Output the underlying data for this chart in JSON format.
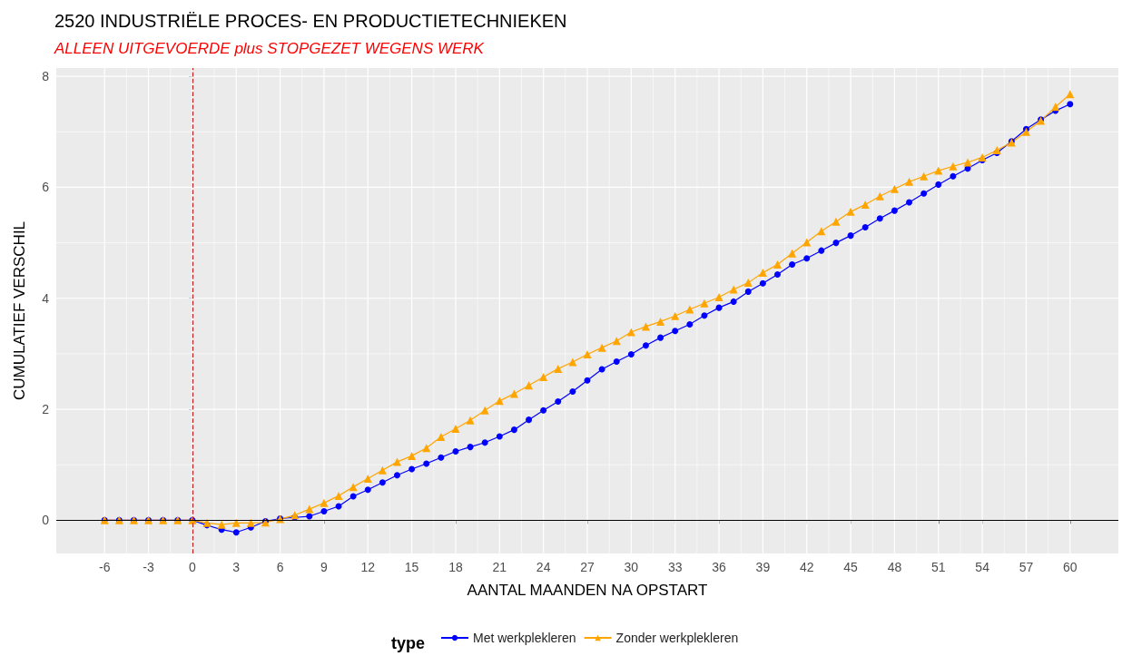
{
  "chart_data": {
    "type": "line",
    "title": "2520 INDUSTRIËLE PROCES- EN PRODUCTIETECHNIEKEN",
    "subtitle": "ALLEEN UITGEVOERDE plus STOPGEZET WEGENS WERK",
    "xlabel": "AANTAL MAANDEN NA OPSTART",
    "ylabel": "CUMULATIEF VERSCHIL",
    "legend_title": "type",
    "x": [
      -6,
      -5,
      -4,
      -3,
      -2,
      -1,
      0,
      1,
      2,
      3,
      4,
      5,
      6,
      7,
      8,
      9,
      10,
      11,
      12,
      13,
      14,
      15,
      16,
      17,
      18,
      19,
      20,
      21,
      22,
      23,
      24,
      25,
      26,
      27,
      28,
      29,
      30,
      31,
      32,
      33,
      34,
      35,
      36,
      37,
      38,
      39,
      40,
      41,
      42,
      43,
      44,
      45,
      46,
      47,
      48,
      49,
      50,
      51,
      52,
      53,
      54,
      55,
      56,
      57,
      58,
      59,
      60
    ],
    "series": [
      {
        "name": "Met werkplekleren",
        "color": "#0000ff",
        "marker": "circle",
        "values": [
          0,
          0,
          0,
          0,
          0,
          0,
          0,
          -0.09,
          -0.17,
          -0.22,
          -0.13,
          -0.02,
          0.03,
          0.05,
          0.07,
          0.16,
          0.25,
          0.43,
          0.55,
          0.68,
          0.81,
          0.92,
          1.02,
          1.13,
          1.24,
          1.32,
          1.4,
          1.51,
          1.63,
          1.81,
          1.98,
          2.14,
          2.32,
          2.52,
          2.72,
          2.86,
          2.99,
          3.15,
          3.29,
          3.41,
          3.53,
          3.69,
          3.83,
          3.94,
          4.12,
          4.27,
          4.43,
          4.61,
          4.72,
          4.86,
          5.0,
          5.13,
          5.28,
          5.44,
          5.58,
          5.73,
          5.89,
          6.05,
          6.2,
          6.34,
          6.49,
          6.62,
          6.83,
          7.05,
          7.22,
          7.38,
          7.5
        ]
      },
      {
        "name": "Zonder werkplekleren",
        "color": "#ffa500",
        "marker": "triangle",
        "values": [
          0,
          0,
          0,
          0,
          0,
          0,
          0,
          -0.05,
          -0.08,
          -0.05,
          -0.05,
          -0.04,
          0.02,
          0.09,
          0.2,
          0.31,
          0.44,
          0.6,
          0.75,
          0.9,
          1.05,
          1.16,
          1.3,
          1.5,
          1.65,
          1.8,
          1.98,
          2.15,
          2.28,
          2.43,
          2.58,
          2.73,
          2.85,
          2.99,
          3.11,
          3.23,
          3.39,
          3.49,
          3.58,
          3.68,
          3.8,
          3.91,
          4.02,
          4.16,
          4.28,
          4.46,
          4.61,
          4.81,
          5.01,
          5.21,
          5.38,
          5.56,
          5.69,
          5.84,
          5.97,
          6.1,
          6.2,
          6.3,
          6.38,
          6.45,
          6.54,
          6.67,
          6.81,
          7.0,
          7.2,
          7.45,
          7.68
        ]
      }
    ],
    "xlim": [
      -9.3,
      63.3
    ],
    "xticks": [
      -6,
      -3,
      0,
      3,
      6,
      9,
      12,
      15,
      18,
      21,
      24,
      27,
      30,
      33,
      36,
      39,
      42,
      45,
      48,
      51,
      54,
      57,
      60
    ],
    "ylim": [
      -0.6,
      8.15
    ],
    "yticks": [
      0,
      2,
      4,
      6,
      8
    ],
    "ref_lines": [
      {
        "axis": "x",
        "value": 0,
        "color": "#b22222",
        "line_style": "dashed"
      },
      {
        "axis": "y",
        "value": 0,
        "color": "#000000",
        "line_style": "solid"
      }
    ],
    "grid": true,
    "legend": "bottom",
    "line_style": "solid"
  }
}
